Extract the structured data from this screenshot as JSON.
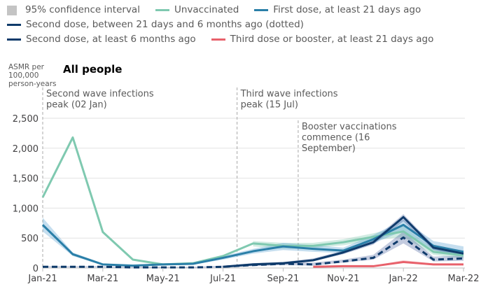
{
  "legend": [
    {
      "label": "95% confidence interval",
      "kind": "box",
      "color": "#c4c4c4"
    },
    {
      "label": "Unvaccinated",
      "kind": "line",
      "color": "#7fc9b0"
    },
    {
      "label": "First dose, at least 21 days ago",
      "kind": "line",
      "color": "#2a7fa8"
    },
    {
      "label": "Second dose, between 21 days and 6 months ago (dotted)",
      "kind": "line",
      "color": "#0f3b6b"
    },
    {
      "label": "Second dose, at least 6 months ago",
      "kind": "line",
      "color": "#0f3b6b"
    },
    {
      "label": "Third dose or booster, at least 21 days ago",
      "kind": "line",
      "color": "#e8616b"
    }
  ],
  "chart_data": {
    "type": "line",
    "title": "All people",
    "ylabel": "ASMR per 100,000 person-years",
    "xlabel": "",
    "ylim": [
      0,
      2500
    ],
    "yticks": [
      0,
      500,
      1000,
      1500,
      2000,
      2500
    ],
    "ytick_labels": [
      "0",
      "500",
      "1,000",
      "1,500",
      "2,000",
      "2,500"
    ],
    "xtick_labels": [
      "Jan-21",
      "Mar-21",
      "May-21",
      "Jul-21",
      "Sep-21",
      "Nov-21",
      "Jan-22",
      "Mar-22"
    ],
    "x": [
      "Jan-21",
      "Feb-21",
      "Mar-21",
      "Apr-21",
      "May-21",
      "Jun-21",
      "Jul-21",
      "Aug-21",
      "Sep-21",
      "Oct-21",
      "Nov-21",
      "Dec-21",
      "Jan-22",
      "Feb-22",
      "Mar-22"
    ],
    "grid": true,
    "legend_position": "top",
    "series": [
      {
        "name": "Unvaccinated",
        "color": "#7fc9b0",
        "dash": false,
        "values": [
          1180,
          2180,
          600,
          140,
          60,
          80,
          200,
          410,
          370,
          370,
          430,
          520,
          610,
          270,
          210
        ],
        "ci_low": [
          null,
          null,
          null,
          null,
          null,
          null,
          null,
          360,
          320,
          330,
          380,
          460,
          520,
          220,
          160
        ],
        "ci_high": [
          null,
          null,
          null,
          null,
          null,
          null,
          null,
          450,
          420,
          420,
          480,
          580,
          700,
          320,
          260
        ]
      },
      {
        "name": "First dose, at least 21 days ago",
        "color": "#2a7fa8",
        "dash": false,
        "values": [
          720,
          230,
          60,
          40,
          60,
          70,
          170,
          280,
          360,
          320,
          290,
          480,
          720,
          370,
          270
        ],
        "ci_low": [
          610,
          200,
          45,
          30,
          45,
          55,
          140,
          240,
          300,
          270,
          250,
          410,
          620,
          300,
          200
        ],
        "ci_high": [
          840,
          260,
          75,
          55,
          75,
          90,
          200,
          320,
          420,
          380,
          340,
          550,
          810,
          450,
          360
        ]
      },
      {
        "name": "Second dose, between 21 days and 6 months ago",
        "color": "#0f3b6b",
        "dash": true,
        "values": [
          20,
          20,
          20,
          10,
          10,
          10,
          20,
          50,
          70,
          60,
          110,
          170,
          510,
          140,
          160
        ],
        "ci_low": [
          10,
          10,
          10,
          5,
          5,
          5,
          10,
          30,
          50,
          40,
          90,
          140,
          410,
          110,
          120
        ],
        "ci_high": [
          30,
          30,
          30,
          20,
          20,
          20,
          40,
          80,
          100,
          90,
          140,
          220,
          610,
          190,
          210
        ]
      },
      {
        "name": "Second dose, at least 6 months ago",
        "color": "#0f3b6b",
        "dash": false,
        "values": [
          null,
          null,
          null,
          null,
          null,
          null,
          20,
          60,
          80,
          130,
          260,
          430,
          850,
          340,
          240
        ],
        "ci_low": [
          null,
          null,
          null,
          null,
          null,
          null,
          10,
          40,
          60,
          110,
          230,
          390,
          780,
          300,
          200
        ],
        "ci_high": [
          null,
          null,
          null,
          null,
          null,
          null,
          30,
          80,
          100,
          160,
          290,
          470,
          900,
          380,
          280
        ]
      },
      {
        "name": "Third dose or booster, at least 21 days ago",
        "color": "#e8616b",
        "dash": false,
        "values": [
          null,
          null,
          null,
          null,
          null,
          null,
          null,
          null,
          null,
          20,
          30,
          30,
          100,
          60,
          60
        ],
        "ci_low": [
          null,
          null,
          null,
          null,
          null,
          null,
          null,
          null,
          null,
          10,
          20,
          20,
          80,
          50,
          50
        ],
        "ci_high": [
          null,
          null,
          null,
          null,
          null,
          null,
          null,
          null,
          null,
          30,
          40,
          40,
          130,
          75,
          75
        ]
      }
    ],
    "annotations": [
      {
        "x": "Jan-21",
        "lines": [
          "Second wave infections",
          "peak (02 Jan)"
        ]
      },
      {
        "x": "Jul-21",
        "offset_days": 14,
        "lines": [
          "Third wave infections",
          "peak (15 Jul)"
        ]
      },
      {
        "x": "Sep-21",
        "offset_days": 15,
        "lines": [
          "Booster vaccinations",
          "commence (16",
          "September)"
        ]
      }
    ]
  }
}
